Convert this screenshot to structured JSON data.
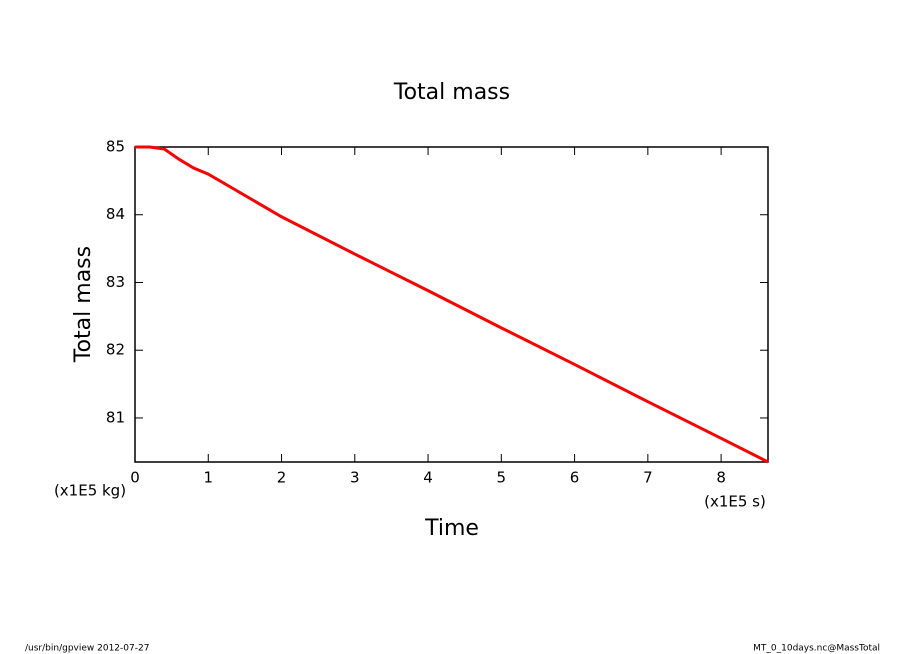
{
  "chart_data": {
    "type": "line",
    "title": "Total mass",
    "xlabel": "Time",
    "ylabel": "Total mass",
    "xunit": "(x1E5 s)",
    "yunit": "(x1E5 kg)",
    "x": [
      0,
      0.2,
      0.4,
      0.6,
      0.8,
      1,
      2,
      3,
      4,
      5,
      6,
      7,
      8,
      8.64
    ],
    "series": [
      {
        "name": "Total mass",
        "color": "#ff0000",
        "values": [
          85,
          85,
          84.97,
          84.82,
          84.69,
          84.6,
          83.97,
          83.42,
          82.88,
          82.33,
          81.79,
          81.24,
          80.7,
          80.35
        ]
      }
    ],
    "xlim": [
      0,
      8.64
    ],
    "ylim": [
      80.35,
      85
    ],
    "xticks": [
      0,
      1,
      2,
      3,
      4,
      5,
      6,
      7,
      8
    ],
    "yticks": [
      81,
      82,
      83,
      84,
      85
    ],
    "footer_left": "/usr/bin/gpview  2012-07-27",
    "footer_right": "MT_0_10days.nc@MassTotal"
  }
}
